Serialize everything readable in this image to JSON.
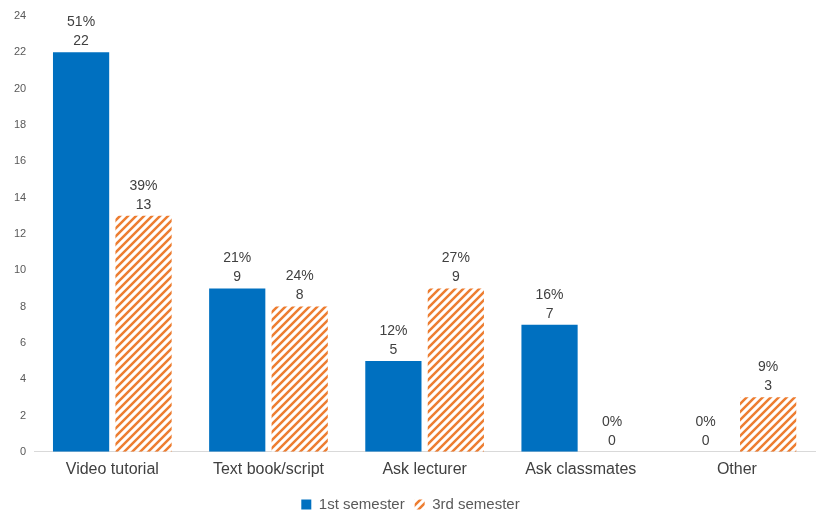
{
  "chart_data": {
    "type": "bar",
    "categories": [
      "Video tutorial",
      "Text book/script",
      "Ask lecturer",
      "Ask classmates",
      "Other"
    ],
    "series": [
      {
        "name": "1st semester",
        "color": "#0070c0",
        "values": [
          22,
          9,
          5,
          7,
          0
        ],
        "value_labels": [
          [
            "51%",
            "22"
          ],
          [
            "21%",
            "9"
          ],
          [
            "12%",
            "5"
          ],
          [
            "16%",
            "7"
          ],
          [
            "0%",
            "0"
          ]
        ]
      },
      {
        "name": "3rd semester",
        "color": "#ed7d31",
        "values": [
          13,
          8,
          9,
          0,
          3
        ],
        "value_labels": [
          [
            "39%",
            "13"
          ],
          [
            "24%",
            "8"
          ],
          [
            "27%",
            "9"
          ],
          [
            "0%",
            "0"
          ],
          [
            "9%",
            "3"
          ]
        ]
      }
    ],
    "ylim": [
      0,
      24
    ],
    "yticks": [
      0,
      2,
      4,
      6,
      8,
      10,
      12,
      14,
      16,
      18,
      20,
      22,
      24
    ],
    "grid": false,
    "legend": "bottom",
    "data_labels": true
  }
}
